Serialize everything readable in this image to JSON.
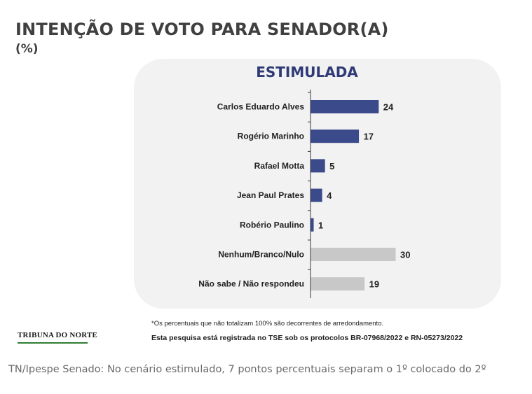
{
  "title": "INTENÇÃO DE VOTO PARA SENADOR(A)",
  "unit": "(%)",
  "panel_title": "ESTIMULADA",
  "chart_data": {
    "type": "bar",
    "orientation": "horizontal",
    "categories": [
      "Carlos Eduardo Alves",
      "Rogério Marinho",
      "Rafael Motta",
      "Jean Paul Prates",
      "Robério Paulino",
      "Nenhum/Branco/Nulo",
      "Não sabe / Não respondeu"
    ],
    "values": [
      24,
      17,
      5,
      4,
      1,
      30,
      19
    ],
    "bar_colors": [
      "#3a4a8a",
      "#3a4a8a",
      "#3a4a8a",
      "#3a4a8a",
      "#3a4a8a",
      "#c8c8c8",
      "#c8c8c8"
    ],
    "xlim": [
      0,
      30
    ],
    "grid": false,
    "legend": "none"
  },
  "footnote": "*Os percentuais que não totalizam 100% são decorrentes de arredondamento.",
  "protocol": "Esta pesquisa está registrada no TSE sob os protocolos BR-07968/2022 e RN-05273/2022",
  "logo_text": "TRIBUNA DO NORTE",
  "caption": "TN/Ipespe Senado: No cenário estimulado, 7 pontos percentuais separam o 1º colocado do 2º",
  "colors": {
    "accent": "#3a4a8a",
    "neutral": "#c8c8c8",
    "panel": "#f2f2f2",
    "title": "#404040"
  }
}
